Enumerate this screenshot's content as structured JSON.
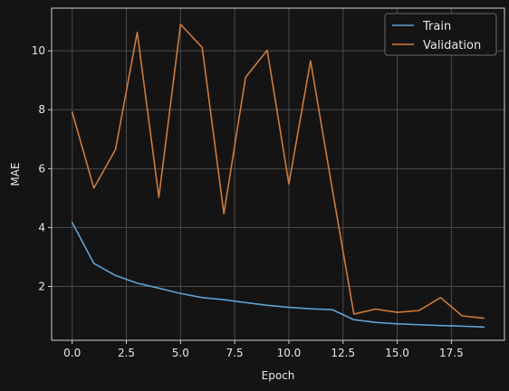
{
  "chart_data": {
    "type": "line",
    "xlabel": "Epoch",
    "ylabel": "MAE",
    "xlim": [
      -0.95,
      19.95
    ],
    "ylim": [
      0.17,
      11.45
    ],
    "xticks": [
      0.0,
      2.5,
      5.0,
      7.5,
      10.0,
      12.5,
      15.0,
      17.5
    ],
    "xtick_labels": [
      "0.0",
      "2.5",
      "5.0",
      "7.5",
      "10.0",
      "12.5",
      "15.0",
      "17.5"
    ],
    "yticks": [
      2,
      4,
      6,
      8,
      10
    ],
    "ytick_labels": [
      "2",
      "4",
      "6",
      "8",
      "10"
    ],
    "grid": true,
    "legend_position": "top-right",
    "x": [
      0,
      1,
      2,
      3,
      4,
      5,
      6,
      7,
      8,
      9,
      10,
      11,
      12,
      13,
      14,
      15,
      16,
      17,
      18,
      19
    ],
    "series": [
      {
        "name": "Train",
        "color": "#5fa2d3",
        "values": [
          4.17,
          2.78,
          2.37,
          2.11,
          1.94,
          1.76,
          1.62,
          1.55,
          1.45,
          1.36,
          1.29,
          1.24,
          1.21,
          0.87,
          0.78,
          0.73,
          0.7,
          0.67,
          0.65,
          0.62
        ]
      },
      {
        "name": "Validation",
        "color": "#d07a35",
        "values": [
          7.92,
          5.34,
          6.65,
          10.63,
          5.03,
          10.9,
          10.11,
          4.47,
          9.1,
          10.02,
          5.48,
          9.66,
          5.32,
          1.06,
          1.23,
          1.12,
          1.18,
          1.62,
          1.0,
          0.92
        ]
      }
    ]
  }
}
